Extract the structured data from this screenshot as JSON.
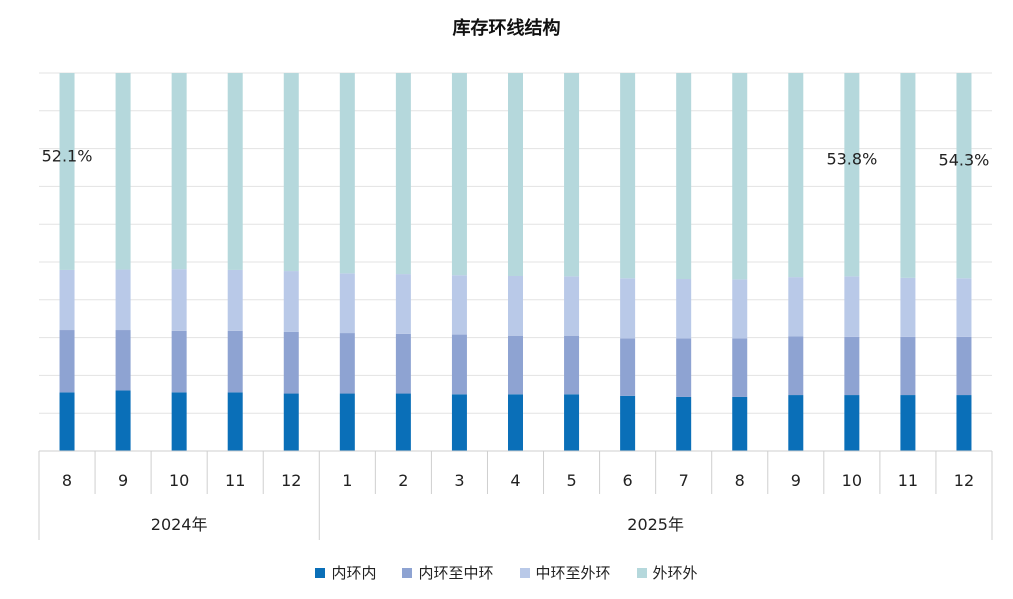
{
  "chart_data": {
    "type": "bar",
    "stacked": true,
    "percent_stacked": true,
    "title": "库存环线结构",
    "categories": [
      "8",
      "9",
      "10",
      "11",
      "12",
      "1",
      "2",
      "3",
      "4",
      "5",
      "6",
      "7",
      "8",
      "9",
      "10",
      "11",
      "12"
    ],
    "category_groups": [
      {
        "label": "2024年",
        "count": 5
      },
      {
        "label": "2025年",
        "count": 12
      }
    ],
    "series": [
      {
        "name": "内环内",
        "color": "#0a6fb8",
        "values": [
          15.5,
          16.0,
          15.5,
          15.5,
          15.2,
          15.2,
          15.2,
          15.0,
          15.0,
          15.0,
          14.6,
          14.3,
          14.3,
          14.8,
          14.8,
          14.8,
          14.8
        ]
      },
      {
        "name": "内环至中环",
        "color": "#8ea3d2",
        "values": [
          16.5,
          16.0,
          16.3,
          16.3,
          16.3,
          16.0,
          15.8,
          15.8,
          15.5,
          15.5,
          15.2,
          15.5,
          15.5,
          15.5,
          15.4,
          15.4,
          15.4
        ]
      },
      {
        "name": "中环至外环",
        "color": "#b9c9e8",
        "values": [
          15.9,
          16.0,
          16.3,
          16.1,
          16.1,
          15.8,
          15.8,
          15.7,
          15.8,
          15.7,
          15.9,
          15.7,
          15.6,
          15.7,
          16.0,
          15.6,
          15.5
        ]
      },
      {
        "name": "外环外",
        "color": "#b5d8dc",
        "values": [
          52.1,
          52.0,
          51.9,
          52.1,
          52.4,
          53.0,
          53.2,
          53.5,
          53.7,
          53.8,
          54.3,
          54.5,
          54.6,
          54.0,
          53.8,
          54.2,
          54.3
        ]
      }
    ],
    "data_labels": [
      {
        "category_index": 0,
        "series": "外环外",
        "text": "52.1%"
      },
      {
        "category_index": 14,
        "series": "外环外",
        "text": "53.8%"
      },
      {
        "category_index": 16,
        "series": "外环外",
        "text": "54.3%"
      }
    ],
    "ylim": [
      0,
      100
    ],
    "grid": true,
    "legend_position": "bottom"
  }
}
